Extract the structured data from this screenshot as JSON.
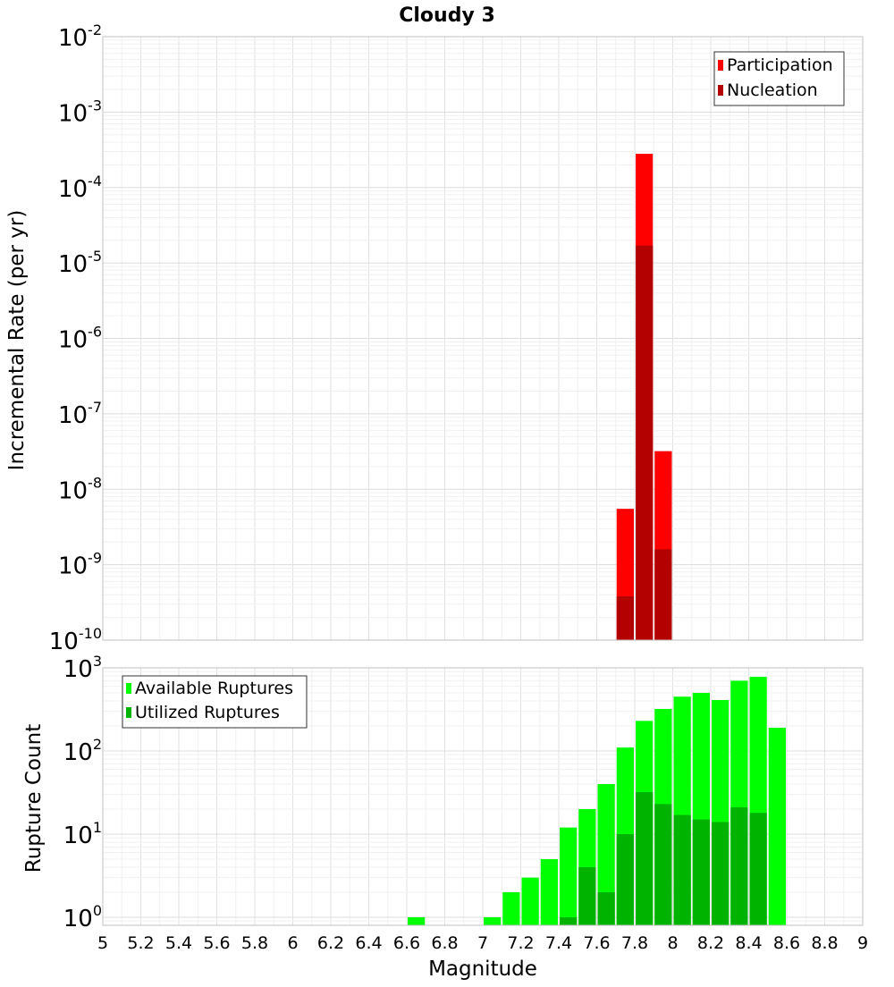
{
  "chart_data": [
    {
      "type": "bar",
      "title": "Cloudy 3",
      "xlabel": "Magnitude",
      "ylabel": "Incremental Rate (per yr)",
      "x_scale": "linear",
      "y_scale": "log",
      "xlim": [
        5,
        9
      ],
      "ylim": [
        1e-10,
        0.01
      ],
      "x_ticks": [
        "5",
        "5.2",
        "5.4",
        "5.6",
        "5.8",
        "6",
        "6.2",
        "6.4",
        "6.6",
        "6.8",
        "7",
        "7.2",
        "7.4",
        "7.6",
        "7.8",
        "8",
        "8.2",
        "8.4",
        "8.6",
        "8.8",
        "9"
      ],
      "y_tick_exponents": [
        "-2",
        "-3",
        "-4",
        "-5",
        "-6",
        "-7",
        "-8",
        "-9",
        "-10"
      ],
      "grid": true,
      "legend_position": "top-right",
      "bar_width": 0.1,
      "series": [
        {
          "name": "Participation",
          "color": "#ff0000",
          "x": [
            7.75,
            7.85,
            7.95
          ],
          "values": [
            5.5e-09,
            0.00028,
            3.2e-08
          ]
        },
        {
          "name": "Nucleation",
          "color": "#b30000",
          "x": [
            7.75,
            7.85,
            7.95
          ],
          "values": [
            3.8e-10,
            1.7e-05,
            1.6e-09
          ]
        }
      ]
    },
    {
      "type": "bar",
      "title": "",
      "xlabel": "Magnitude",
      "ylabel": "Rupture Count",
      "x_scale": "linear",
      "y_scale": "log",
      "xlim": [
        5,
        9
      ],
      "ylim": [
        0.8,
        1000
      ],
      "y_tick_exponents": [
        "3",
        "2",
        "1",
        "0"
      ],
      "grid": true,
      "legend_position": "top-left",
      "bar_width": 0.1,
      "series": [
        {
          "name": "Available Ruptures",
          "color": "#00ff00",
          "x": [
            6.65,
            7.05,
            7.15,
            7.25,
            7.35,
            7.45,
            7.55,
            7.65,
            7.75,
            7.85,
            7.95,
            8.05,
            8.15,
            8.25,
            8.35,
            8.45,
            8.55
          ],
          "values": [
            1,
            1,
            2,
            3,
            5,
            12,
            20,
            40,
            110,
            230,
            320,
            450,
            500,
            410,
            700,
            780,
            190
          ]
        },
        {
          "name": "Utilized Ruptures",
          "color": "#00b300",
          "x": [
            7.45,
            7.55,
            7.65,
            7.75,
            7.85,
            7.95,
            8.05,
            8.15,
            8.25,
            8.35,
            8.45
          ],
          "values": [
            1,
            4,
            2,
            10,
            32,
            23,
            17,
            15,
            14,
            21,
            18
          ]
        }
      ]
    }
  ]
}
